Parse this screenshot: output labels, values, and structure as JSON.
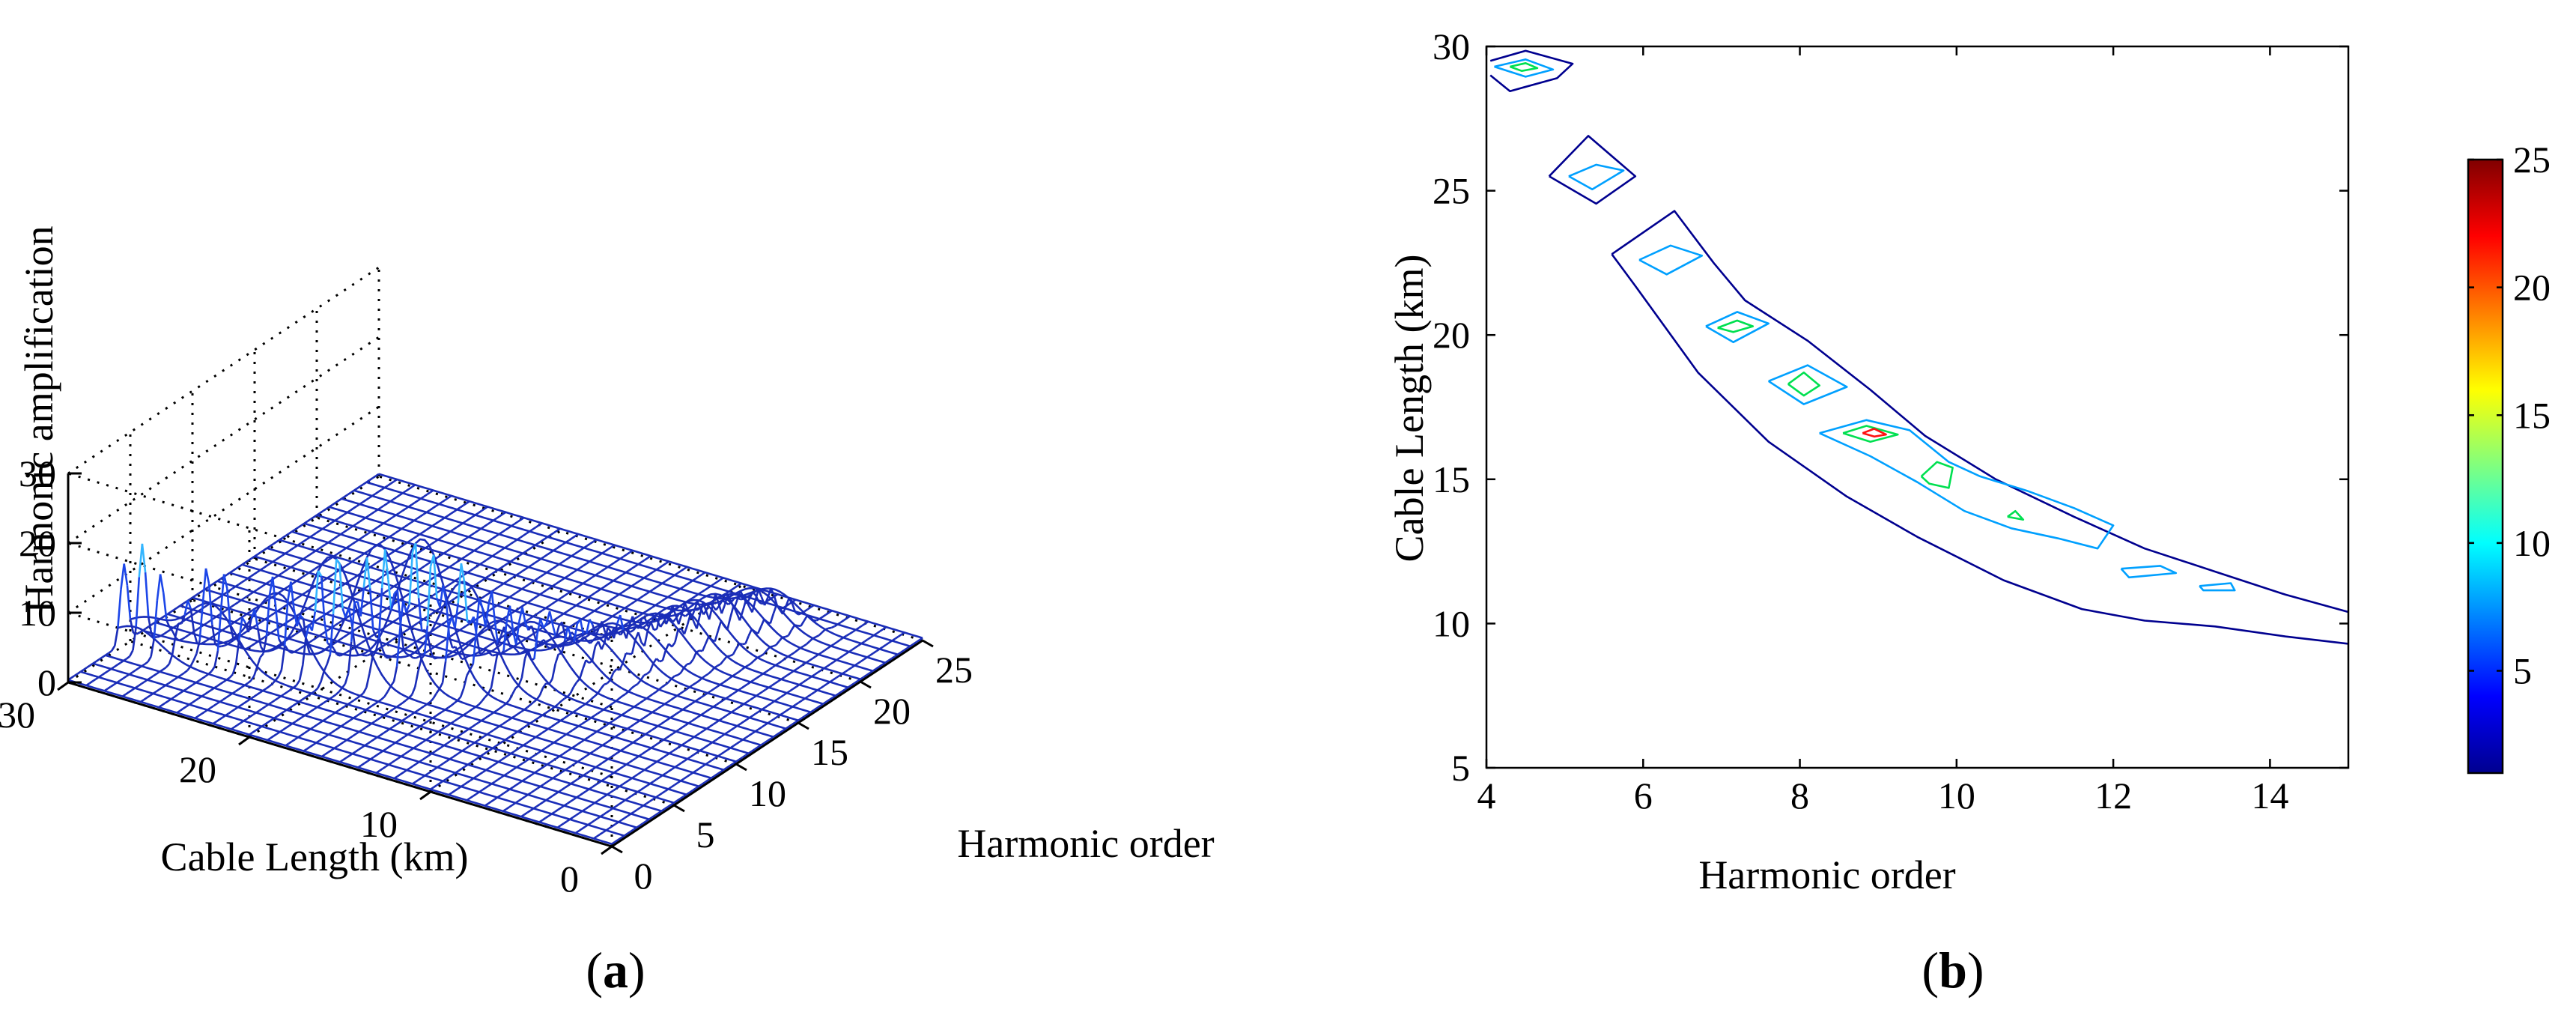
{
  "figure": {
    "panel_a_label": {
      "open": "(",
      "letter": "a",
      "close": ")"
    },
    "panel_b_label": {
      "open": "(",
      "letter": "b",
      "close": ")"
    }
  },
  "chart_data": [
    {
      "type": "surface",
      "panel": "a",
      "title": "",
      "xlabel": "Harmonic order",
      "ylabel": "Cable Length (km)",
      "zlabel": "Harmonic amplification",
      "xlim": [
        0,
        25
      ],
      "ylim": [
        0,
        30
      ],
      "zlim": [
        0,
        30
      ],
      "x_ticks": [
        "0",
        "5",
        "10",
        "15",
        "20",
        "25"
      ],
      "y_ticks": [
        "0",
        "10",
        "20",
        "30"
      ],
      "z_ticks": [
        "0",
        "10",
        "20",
        "30"
      ],
      "grid": true,
      "colormap": "jet",
      "resonance_peaks": [
        {
          "harmonic": 4.5,
          "cable_length": 29,
          "amplification": 15
        },
        {
          "harmonic": 5.3,
          "cable_length": 25.5,
          "amplification": 14
        },
        {
          "harmonic": 6.2,
          "cable_length": 22.5,
          "amplification": 14
        },
        {
          "harmonic": 7.1,
          "cable_length": 20.2,
          "amplification": 18
        },
        {
          "harmonic": 8.0,
          "cable_length": 18.3,
          "amplification": 19
        },
        {
          "harmonic": 8.9,
          "cable_length": 16.6,
          "amplification": 21
        },
        {
          "harmonic": 9.8,
          "cable_length": 15.0,
          "amplification": 17
        },
        {
          "harmonic": 10.7,
          "cable_length": 13.7,
          "amplification": 13
        },
        {
          "harmonic": 11.7,
          "cable_length": 12.7,
          "amplification": 10
        },
        {
          "harmonic": 12.5,
          "cable_length": 11.8,
          "amplification": 9
        },
        {
          "harmonic": 13.4,
          "cable_length": 11.2,
          "amplification": 8
        },
        {
          "harmonic": 14.3,
          "cable_length": 10.6,
          "amplification": 7
        },
        {
          "harmonic": 15.2,
          "cable_length": 10.0,
          "amplification": 7
        },
        {
          "harmonic": 16.2,
          "cable_length": 9.5,
          "amplification": 6
        },
        {
          "harmonic": 17.1,
          "cable_length": 9.0,
          "amplification": 6
        },
        {
          "harmonic": 18.0,
          "cable_length": 8.6,
          "amplification": 6
        },
        {
          "harmonic": 19.0,
          "cable_length": 8.2,
          "amplification": 6
        },
        {
          "harmonic": 20.0,
          "cable_length": 7.8,
          "amplification": 6
        },
        {
          "harmonic": 21.0,
          "cable_length": 7.5,
          "amplification": 5
        },
        {
          "harmonic": 22.0,
          "cable_length": 7.1,
          "amplification": 5
        },
        {
          "harmonic": 23.0,
          "cable_length": 6.8,
          "amplification": 4
        }
      ]
    },
    {
      "type": "contour",
      "panel": "b",
      "title": "",
      "xlabel": "Harmonic order",
      "ylabel": "Cable Length (km)",
      "xlim": [
        4,
        15
      ],
      "ylim": [
        5,
        30
      ],
      "x_ticks": [
        "4",
        "6",
        "8",
        "10",
        "12",
        "14"
      ],
      "y_ticks": [
        "5",
        "10",
        "15",
        "20",
        "25",
        "30"
      ],
      "grid": false,
      "colorbar": {
        "range": [
          1,
          25
        ],
        "ticks": [
          "5",
          "10",
          "15",
          "20",
          "25"
        ],
        "colormap": "jet",
        "placement": "right"
      },
      "contours": [
        {
          "level": 2,
          "color": "#00008f",
          "points": [
            [
              4.05,
              29.5
            ],
            [
              4.5,
              29.85
            ],
            [
              5.1,
              29.4
            ],
            [
              4.9,
              28.9
            ],
            [
              4.3,
              28.45
            ],
            [
              4.05,
              29.0
            ]
          ]
        },
        {
          "level": 2,
          "color": "#00008f",
          "points": [
            [
              4.8,
              25.5
            ],
            [
              5.3,
              26.9
            ],
            [
              5.9,
              25.5
            ],
            [
              5.4,
              24.55
            ],
            [
              4.8,
              25.5
            ]
          ]
        },
        {
          "level": 2,
          "color": "#00008f",
          "points": [
            [
              5.6,
              22.8
            ],
            [
              6.4,
              24.3
            ],
            [
              6.9,
              22.5
            ],
            [
              7.3,
              21.2
            ],
            [
              8.1,
              19.8
            ],
            [
              8.9,
              18.1
            ],
            [
              9.6,
              16.5
            ],
            [
              10.5,
              15.0
            ],
            [
              11.5,
              13.7
            ],
            [
              12.4,
              12.6
            ],
            [
              13.3,
              11.8
            ],
            [
              14.2,
              11.0
            ],
            [
              15.0,
              10.4
            ]
          ]
        },
        {
          "level": 2,
          "color": "#00008f",
          "points": [
            [
              15.0,
              9.3
            ],
            [
              14.2,
              9.55
            ],
            [
              13.3,
              9.9
            ],
            [
              12.4,
              10.1
            ],
            [
              11.6,
              10.5
            ],
            [
              10.6,
              11.5
            ],
            [
              9.5,
              13.0
            ],
            [
              8.6,
              14.4
            ],
            [
              7.6,
              16.3
            ],
            [
              6.7,
              18.7
            ],
            [
              5.9,
              21.7
            ],
            [
              5.6,
              22.8
            ]
          ]
        },
        {
          "level": 7,
          "color": "#00a0ff",
          "points": [
            [
              4.1,
              29.3
            ],
            [
              4.5,
              29.55
            ],
            [
              4.85,
              29.2
            ],
            [
              4.5,
              28.95
            ],
            [
              4.1,
              29.3
            ]
          ]
        },
        {
          "level": 7,
          "color": "#00a0ff",
          "points": [
            [
              5.05,
              25.5
            ],
            [
              5.4,
              25.9
            ],
            [
              5.75,
              25.7
            ],
            [
              5.35,
              25.05
            ],
            [
              5.05,
              25.5
            ]
          ]
        },
        {
          "level": 7,
          "color": "#00a0ff",
          "points": [
            [
              5.95,
              22.6
            ],
            [
              6.35,
              23.1
            ],
            [
              6.75,
              22.75
            ],
            [
              6.3,
              22.1
            ],
            [
              5.95,
              22.6
            ]
          ]
        },
        {
          "level": 7,
          "color": "#00a0ff",
          "points": [
            [
              6.8,
              20.3
            ],
            [
              7.2,
              20.8
            ],
            [
              7.6,
              20.4
            ],
            [
              7.15,
              19.75
            ],
            [
              6.8,
              20.3
            ]
          ]
        },
        {
          "level": 7,
          "color": "#00a0ff",
          "points": [
            [
              7.6,
              18.4
            ],
            [
              8.1,
              18.95
            ],
            [
              8.6,
              18.2
            ],
            [
              8.05,
              17.6
            ],
            [
              7.6,
              18.4
            ]
          ]
        },
        {
          "level": 7,
          "color": "#00a0ff",
          "points": [
            [
              8.25,
              16.6
            ],
            [
              8.85,
              17.05
            ],
            [
              9.4,
              16.7
            ],
            [
              9.9,
              15.6
            ],
            [
              10.3,
              15.1
            ],
            [
              10.9,
              14.6
            ],
            [
              11.5,
              14.0
            ],
            [
              12.0,
              13.4
            ],
            [
              11.8,
              12.6
            ],
            [
              11.3,
              12.95
            ],
            [
              10.7,
              13.3
            ],
            [
              10.1,
              13.9
            ],
            [
              9.5,
              14.9
            ],
            [
              8.9,
              15.8
            ],
            [
              8.25,
              16.6
            ]
          ]
        },
        {
          "level": 7,
          "color": "#00a0ff",
          "points": [
            [
              12.1,
              11.9
            ],
            [
              12.6,
              12.0
            ],
            [
              12.8,
              11.75
            ],
            [
              12.2,
              11.6
            ],
            [
              12.1,
              11.9
            ]
          ]
        },
        {
          "level": 7,
          "color": "#00a0ff",
          "points": [
            [
              13.1,
              11.3
            ],
            [
              13.5,
              11.4
            ],
            [
              13.55,
              11.15
            ],
            [
              13.15,
              11.15
            ],
            [
              13.1,
              11.3
            ]
          ]
        },
        {
          "level": 12,
          "color": "#00e050",
          "points": [
            [
              4.3,
              29.3
            ],
            [
              4.5,
              29.42
            ],
            [
              4.65,
              29.25
            ],
            [
              4.45,
              29.15
            ],
            [
              4.3,
              29.3
            ]
          ]
        },
        {
          "level": 12,
          "color": "#00e050",
          "points": [
            [
              6.95,
              20.25
            ],
            [
              7.2,
              20.5
            ],
            [
              7.4,
              20.3
            ],
            [
              7.15,
              20.1
            ],
            [
              6.95,
              20.25
            ]
          ]
        },
        {
          "level": 12,
          "color": "#00e050",
          "points": [
            [
              7.85,
              18.3
            ],
            [
              8.05,
              18.7
            ],
            [
              8.25,
              18.25
            ],
            [
              8.05,
              17.9
            ],
            [
              7.85,
              18.3
            ]
          ]
        },
        {
          "level": 12,
          "color": "#00e050",
          "points": [
            [
              8.55,
              16.6
            ],
            [
              8.85,
              16.85
            ],
            [
              9.25,
              16.55
            ],
            [
              8.9,
              16.3
            ],
            [
              8.55,
              16.6
            ]
          ]
        },
        {
          "level": 12,
          "color": "#00e050",
          "points": [
            [
              9.55,
              15.1
            ],
            [
              9.75,
              15.6
            ],
            [
              9.95,
              15.4
            ],
            [
              9.9,
              14.7
            ],
            [
              9.65,
              14.85
            ],
            [
              9.55,
              15.1
            ]
          ]
        },
        {
          "level": 12,
          "color": "#00e050",
          "points": [
            [
              10.65,
              13.7
            ],
            [
              10.75,
              13.9
            ],
            [
              10.85,
              13.6
            ],
            [
              10.65,
              13.7
            ]
          ]
        },
        {
          "level": 22,
          "color": "#ff1010",
          "points": [
            [
              8.8,
              16.6
            ],
            [
              8.95,
              16.75
            ],
            [
              9.1,
              16.55
            ],
            [
              8.95,
              16.48
            ],
            [
              8.8,
              16.6
            ]
          ]
        }
      ]
    }
  ]
}
